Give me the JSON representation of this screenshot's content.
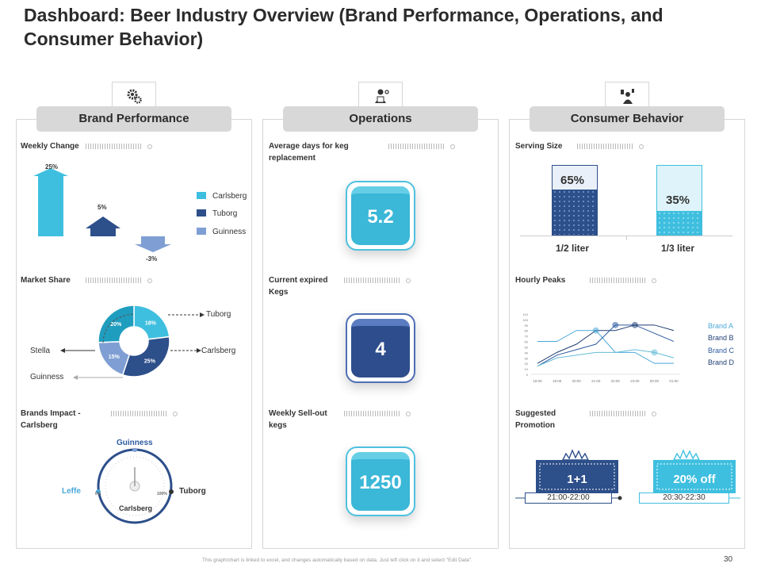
{
  "title": "Dashboard: Beer Industry Overview (Brand Performance, Operations, and Consumer Behavior)",
  "columns": {
    "brand_performance": "Brand Performance",
    "operations": "Operations",
    "consumer_behavior": "Consumer Behavior"
  },
  "brand": {
    "weekly_change": {
      "label": "Weekly Change",
      "values": [
        "25%",
        "5%",
        "-3%"
      ],
      "legend": [
        "Carlsberg",
        "Tuborg",
        "Guinness"
      ],
      "colors": [
        "#3fbfdf",
        "#2d4f8a",
        "#7f9fd4"
      ]
    },
    "market_share": {
      "label": "Market Share",
      "segments": [
        "18%",
        "25%",
        "15%",
        "20%"
      ],
      "labels": {
        "tuborg": "Tuborg",
        "carlsberg": "Carlsberg",
        "stella": "Stella",
        "guinness": "Guinness"
      }
    },
    "impact": {
      "label_line1": "Brands Impact -",
      "label_line2": "Carlsberg",
      "top": "Guinness",
      "left": "Leffe",
      "right": "Tuborg",
      "center": "Carlsberg",
      "pct_min": "0%",
      "pct_max": "100%"
    }
  },
  "operations": {
    "keg_replacement": {
      "label_line1": "Average days for keg",
      "label_line2": "replacement",
      "value": "5.2"
    },
    "expired_kegs": {
      "label_line1": "Current expired",
      "label_line2": "Kegs",
      "value": "4"
    },
    "sellout": {
      "label_line1": "Weekly Sell-out",
      "label_line2": "kegs",
      "value": "1250"
    }
  },
  "consumer": {
    "serving_size": {
      "label": "Serving Size",
      "bars": [
        {
          "name": "1/2 liter",
          "value": "65%"
        },
        {
          "name": "1/3 liter",
          "value": "35%"
        }
      ]
    },
    "hourly_peaks": {
      "label": "Hourly Peaks",
      "legend": [
        "Brand A",
        "Brand B",
        "Brand C",
        "Brand D"
      ]
    },
    "promotion": {
      "label_line1": "Suggested",
      "label_line2": "Promotion",
      "offers": [
        {
          "text": "1+1",
          "time": "21:00-22:00"
        },
        {
          "text": "20% off",
          "time": "20:30-22:30"
        }
      ]
    }
  },
  "chart_data": [
    {
      "type": "bar",
      "title": "Weekly Change",
      "categories": [
        "Carlsberg",
        "Tuborg",
        "Guinness"
      ],
      "values": [
        25,
        5,
        -3
      ],
      "ylabel": "%"
    },
    {
      "type": "pie",
      "title": "Market Share",
      "categories": [
        "Tuborg",
        "Carlsberg",
        "Guinness",
        "Stella"
      ],
      "values": [
        18,
        25,
        15,
        20
      ]
    },
    {
      "type": "bar",
      "title": "Serving Size",
      "categories": [
        "1/2 liter",
        "1/3 liter"
      ],
      "values": [
        65,
        35
      ],
      "ylim": [
        0,
        100
      ]
    },
    {
      "type": "line",
      "title": "Hourly Peaks",
      "x": [
        "18:00",
        "19:00",
        "20:00",
        "21:00",
        "22:00",
        "23:00",
        "00:00",
        "01:00"
      ],
      "y_ticks": [
        "0",
        "10",
        "20",
        "30",
        "40",
        "50",
        "60",
        "70",
        "80",
        "90",
        "100",
        "110"
      ],
      "ylim": [
        0,
        110
      ],
      "series": [
        {
          "name": "Brand A",
          "color": "#4aa8d8",
          "values": [
            60,
            60,
            80,
            80,
            40,
            40,
            20,
            20
          ]
        },
        {
          "name": "Brand B",
          "color": "#1f3f73",
          "values": [
            20,
            40,
            55,
            80,
            80,
            90,
            90,
            80
          ]
        },
        {
          "name": "Brand C",
          "color": "#2c5aa0",
          "values": [
            15,
            35,
            45,
            55,
            90,
            90,
            75,
            60
          ]
        },
        {
          "name": "Brand D",
          "color": "#66bcd8",
          "values": [
            15,
            30,
            35,
            40,
            40,
            45,
            40,
            30
          ]
        }
      ]
    }
  ],
  "footnote": "This graph/chart is linked to excel, and changes automatically based on data. Just left click on it and select \"Edit Data\".",
  "page_number": "30"
}
